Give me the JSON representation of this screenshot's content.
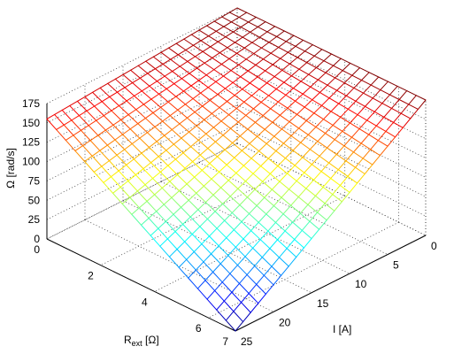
{
  "chart_data": {
    "type": "surface",
    "title": "",
    "zlabel": "Ω [rad/s]",
    "xlabel": "I [A]",
    "ylabel_main": "R",
    "ylabel_sub": "ext",
    "ylabel_unit": " [Ω]",
    "x_ticks": [
      "0",
      "5",
      "10",
      "15",
      "20",
      "25"
    ],
    "y_ticks": [
      "0",
      "2",
      "4",
      "6",
      "7"
    ],
    "z_ticks": [
      "0",
      "25",
      "50",
      "75",
      "100",
      "125",
      "150",
      "175"
    ],
    "xlim": [
      0,
      25
    ],
    "ylim": [
      0,
      7
    ],
    "zlim": [
      0,
      175
    ],
    "colormap": "jet",
    "grid": true,
    "corner_values": {
      "I0_R0": 175,
      "I25_R0": 155,
      "I0_R7": 175,
      "I25_R7": 0
    },
    "mesh": {
      "n_I": 26,
      "n_R": 21
    }
  }
}
